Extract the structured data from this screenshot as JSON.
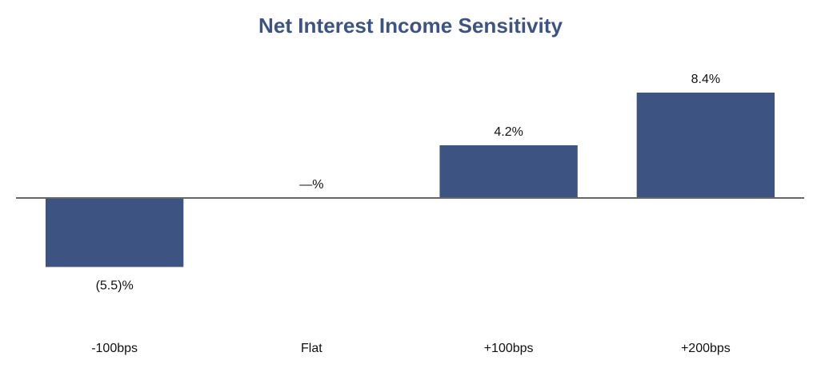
{
  "chart_data": {
    "type": "bar",
    "title": "Net Interest Income Sensitivity",
    "categories": [
      "-100bps",
      "Flat",
      "+100bps",
      "+200bps"
    ],
    "values": [
      -5.5,
      0,
      4.2,
      8.4
    ],
    "value_labels": [
      "(5.5)%",
      "—%",
      "4.2%",
      "8.4%"
    ],
    "color": "#3d5482"
  }
}
